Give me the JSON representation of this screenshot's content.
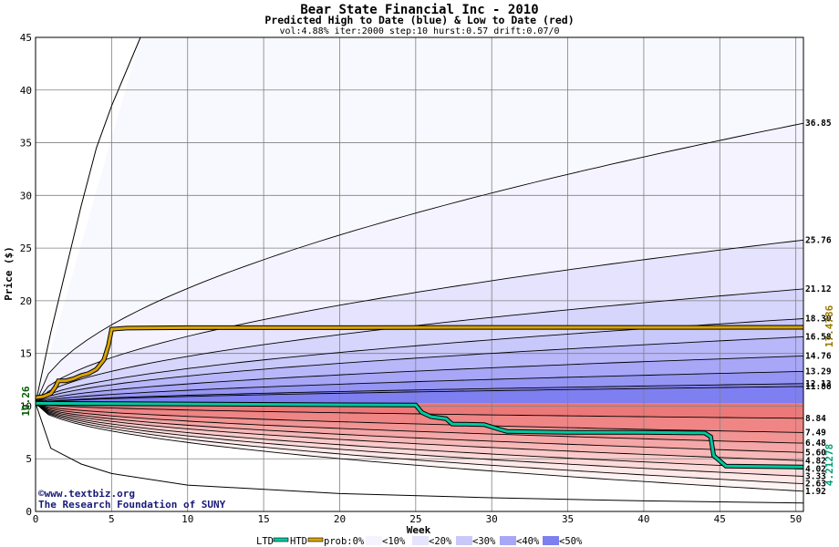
{
  "header": {
    "title": "Bear State Financial Inc - 2010",
    "subtitle": "Predicted High to Date (blue) &  Low to Date (red)",
    "params": "vol:4.88% iter:2000 step:10 hurst:0.57 drift:0.07/0"
  },
  "credits": {
    "line1": "www.textbiz.org",
    "line2": "The Research Foundation of SUNY"
  },
  "colors": {
    "htd_line": "#d9a400",
    "ltd_line": "#00c8a0",
    "hi_value_label": "#9a7a00",
    "lo_value_label": "#00a07a",
    "start_label": "#005a00"
  },
  "chart_data": {
    "type": "area",
    "xlabel": "Week",
    "ylabel": "Price ($)",
    "xlim": [
      0,
      50.5
    ],
    "ylim": [
      0,
      45
    ],
    "xticks": [
      0,
      5,
      10,
      15,
      20,
      25,
      30,
      35,
      40,
      45,
      50
    ],
    "yticks": [
      0,
      5,
      10,
      15,
      20,
      25,
      30,
      35,
      40,
      45
    ],
    "grid": true,
    "start_price": 10.26,
    "start_label": "10.26",
    "high_to_date_final": 17.4786,
    "high_to_date_label": "17.4786",
    "low_to_date_final": 4.21278,
    "low_to_date_label": "4.21278",
    "high_quantiles_end": [
      11.86,
      12.13,
      13.29,
      14.76,
      16.58,
      18.3,
      21.12,
      25.76,
      36.85
    ],
    "high_quantile_labels": [
      "11.86",
      "12.13",
      "13.29",
      "14.76",
      "16.58",
      "18.30",
      "21.12",
      "25.76",
      "36.85"
    ],
    "low_quantiles_end": [
      8.84,
      7.49,
      6.48,
      5.6,
      4.82,
      4.02,
      3.33,
      2.63,
      1.92
    ],
    "low_quantile_labels": [
      "8.84",
      "7.49",
      "6.48",
      "5.60",
      "4.82",
      "4.02",
      "3.33",
      "2.63",
      "1.92"
    ],
    "outer_max_line": {
      "name": "max",
      "points": [
        [
          0,
          10.26
        ],
        [
          1,
          17
        ],
        [
          2,
          23
        ],
        [
          3,
          29
        ],
        [
          4,
          34.5
        ],
        [
          5,
          38.5
        ],
        [
          6.9,
          45
        ]
      ]
    },
    "outer_min_line": {
      "name": "min",
      "points": [
        [
          0,
          10.26
        ],
        [
          1,
          6
        ],
        [
          3,
          4.5
        ],
        [
          5,
          3.6
        ],
        [
          10,
          2.5
        ],
        [
          20,
          1.7
        ],
        [
          30,
          1.3
        ],
        [
          40,
          1.0
        ],
        [
          50.5,
          0.8
        ]
      ]
    },
    "series": [
      {
        "name": "HTD",
        "points": [
          [
            0,
            10.8
          ],
          [
            0.5,
            10.9
          ],
          [
            1,
            11.2
          ],
          [
            1.3,
            11.8
          ],
          [
            1.5,
            12.4
          ],
          [
            2,
            12.4
          ],
          [
            2.5,
            12.6
          ],
          [
            3,
            12.9
          ],
          [
            3.5,
            13.1
          ],
          [
            4,
            13.5
          ],
          [
            4.5,
            14.4
          ],
          [
            4.8,
            15.8
          ],
          [
            5,
            17.3
          ],
          [
            6,
            17.4
          ],
          [
            10,
            17.45
          ],
          [
            20,
            17.45
          ],
          [
            30,
            17.47
          ],
          [
            40,
            17.47
          ],
          [
            50.5,
            17.4786
          ]
        ]
      },
      {
        "name": "LTD",
        "points": [
          [
            0,
            10.26
          ],
          [
            25,
            10.1
          ],
          [
            25.4,
            9.4
          ],
          [
            26,
            9.0
          ],
          [
            27,
            8.8
          ],
          [
            27.4,
            8.3
          ],
          [
            29.5,
            8.25
          ],
          [
            30.5,
            7.8
          ],
          [
            31,
            7.6
          ],
          [
            35,
            7.5
          ],
          [
            40,
            7.5
          ],
          [
            44,
            7.45
          ],
          [
            44.4,
            7.1
          ],
          [
            44.6,
            5.3
          ],
          [
            45,
            4.8
          ],
          [
            45.4,
            4.3
          ],
          [
            50.5,
            4.21278
          ]
        ]
      }
    ],
    "legend": {
      "placement": "bottom-center",
      "items": [
        "LTD",
        "HTD",
        "prob:0%",
        "<10%",
        "<20%",
        "<30%",
        "<40%",
        "<50%"
      ],
      "swatch_colors": [
        "#f4f3ff",
        "#e5e3fd",
        "#c9c8fb",
        "#a7a6f7",
        "#7e7ff0"
      ]
    }
  }
}
